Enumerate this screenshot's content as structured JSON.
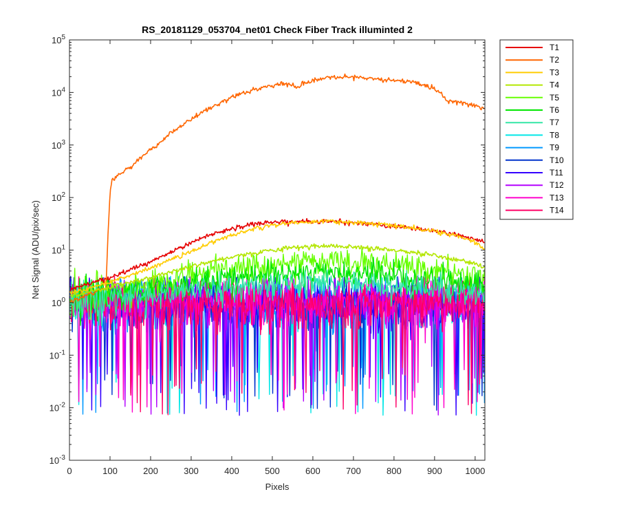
{
  "chart_data": {
    "type": "line",
    "title": "RS_20181129_053704_net01   Check Fiber     Track illuminted 2",
    "xlabel": "Pixels",
    "ylabel": "Net Signal (ADU/pix/sec)",
    "xlim": [
      0,
      1024
    ],
    "ylim": [
      0.001,
      100000
    ],
    "yscale": "log",
    "x_ticks": [
      0,
      100,
      200,
      300,
      400,
      500,
      600,
      700,
      800,
      900,
      1000
    ],
    "x_tick_labels": [
      "0",
      "100",
      "200",
      "300",
      "400",
      "500",
      "600",
      "700",
      "800",
      "900",
      "1000"
    ],
    "y_ticks": [
      0.001,
      0.01,
      0.1,
      1,
      10,
      100,
      1000,
      10000,
      100000
    ],
    "y_tick_labels": [
      {
        "base": "10",
        "exp": "-3"
      },
      {
        "base": "10",
        "exp": "-2"
      },
      {
        "base": "10",
        "exp": "-1"
      },
      {
        "base": "10",
        "exp": "0"
      },
      {
        "base": "10",
        "exp": "1"
      },
      {
        "base": "10",
        "exp": "2"
      },
      {
        "base": "10",
        "exp": "3"
      },
      {
        "base": "10",
        "exp": "4"
      },
      {
        "base": "10",
        "exp": "5"
      }
    ],
    "grid": false,
    "legend_position": "outside-right",
    "series": [
      {
        "name": "T1",
        "color": "#e60000",
        "kind": "smooth",
        "x": [
          0,
          50,
          100,
          150,
          200,
          250,
          300,
          350,
          400,
          450,
          500,
          550,
          600,
          650,
          700,
          750,
          800,
          850,
          900,
          950,
          1000,
          1024
        ],
        "y": [
          1.8,
          2.3,
          3.0,
          4.2,
          6.0,
          9.0,
          14,
          20,
          26,
          31,
          34,
          35,
          35,
          35,
          33,
          31,
          28,
          26,
          23,
          20,
          16,
          14
        ]
      },
      {
        "name": "T2",
        "color": "#ff6600",
        "kind": "smooth",
        "x": [
          0,
          50,
          90,
          95,
          100,
          105,
          150,
          200,
          250,
          300,
          350,
          400,
          450,
          500,
          530,
          545,
          560,
          575,
          600,
          650,
          700,
          750,
          800,
          850,
          900,
          920,
          935,
          950,
          970,
          1000,
          1024
        ],
        "y": [
          1.0,
          1.5,
          2.0,
          20,
          120,
          220,
          380,
          800,
          1700,
          3100,
          5200,
          8000,
          11000,
          13800,
          15000,
          14000,
          12000,
          14500,
          17000,
          19000,
          19500,
          18500,
          17000,
          15500,
          12000,
          9000,
          6500,
          7000,
          6300,
          5600,
          4800
        ]
      },
      {
        "name": "T3",
        "color": "#ffcc00",
        "kind": "smooth",
        "x": [
          0,
          50,
          100,
          150,
          200,
          250,
          300,
          350,
          400,
          450,
          500,
          550,
          600,
          650,
          700,
          750,
          800,
          850,
          900,
          950,
          1000,
          1024
        ],
        "y": [
          1.5,
          1.9,
          2.5,
          3.3,
          4.6,
          6.5,
          9.5,
          14,
          19,
          25,
          30,
          33,
          35,
          35,
          34,
          32,
          29,
          26,
          23,
          19,
          14,
          11
        ]
      },
      {
        "name": "T4",
        "color": "#b3e600",
        "kind": "smooth",
        "x": [
          0,
          100,
          200,
          300,
          400,
          500,
          600,
          650,
          700,
          800,
          900,
          1000,
          1024
        ],
        "y": [
          1.3,
          2.0,
          3.0,
          5.0,
          7.5,
          10,
          12,
          12,
          11.5,
          10,
          8,
          5.5,
          4.5
        ]
      },
      {
        "name": "T5",
        "color": "#66ff00",
        "kind": "noisy",
        "x": [
          0,
          100,
          200,
          300,
          400,
          500,
          600,
          650,
          700,
          800,
          900,
          1000,
          1024
        ],
        "y": [
          1.2,
          1.6,
          2.2,
          3.2,
          4.3,
          5.3,
          6.0,
          6.0,
          5.8,
          5.0,
          4.0,
          3.0,
          2.6
        ]
      },
      {
        "name": "T6",
        "color": "#00e600",
        "kind": "noisy",
        "x": [
          0,
          200,
          400,
          600,
          800,
          1000,
          1024
        ],
        "y": [
          1.1,
          1.8,
          3.0,
          3.8,
          3.2,
          2.2,
          2.0
        ]
      },
      {
        "name": "T7",
        "color": "#33e6a6",
        "kind": "noisy",
        "x": [
          0,
          200,
          400,
          600,
          800,
          1000,
          1024
        ],
        "y": [
          1.0,
          1.4,
          2.0,
          2.4,
          2.1,
          1.6,
          1.5
        ]
      },
      {
        "name": "T8",
        "color": "#00e6e6",
        "kind": "noise",
        "x": [
          0,
          1024
        ],
        "y": [
          1.0,
          1.0
        ]
      },
      {
        "name": "T9",
        "color": "#0099ff",
        "kind": "noise",
        "x": [
          0,
          1024
        ],
        "y": [
          1.0,
          1.0
        ]
      },
      {
        "name": "T10",
        "color": "#0033cc",
        "kind": "noise",
        "x": [
          0,
          1024
        ],
        "y": [
          1.0,
          1.0
        ]
      },
      {
        "name": "T11",
        "color": "#3300ff",
        "kind": "noise",
        "x": [
          0,
          1024
        ],
        "y": [
          1.0,
          1.0
        ]
      },
      {
        "name": "T12",
        "color": "#b300ff",
        "kind": "noise",
        "x": [
          0,
          1024
        ],
        "y": [
          1.0,
          1.0
        ]
      },
      {
        "name": "T13",
        "color": "#ff00cc",
        "kind": "noise",
        "x": [
          0,
          1024
        ],
        "y": [
          1.0,
          1.0
        ]
      },
      {
        "name": "T14",
        "color": "#ff0066",
        "kind": "noise",
        "x": [
          0,
          1024
        ],
        "y": [
          1.0,
          1.0
        ]
      }
    ]
  }
}
